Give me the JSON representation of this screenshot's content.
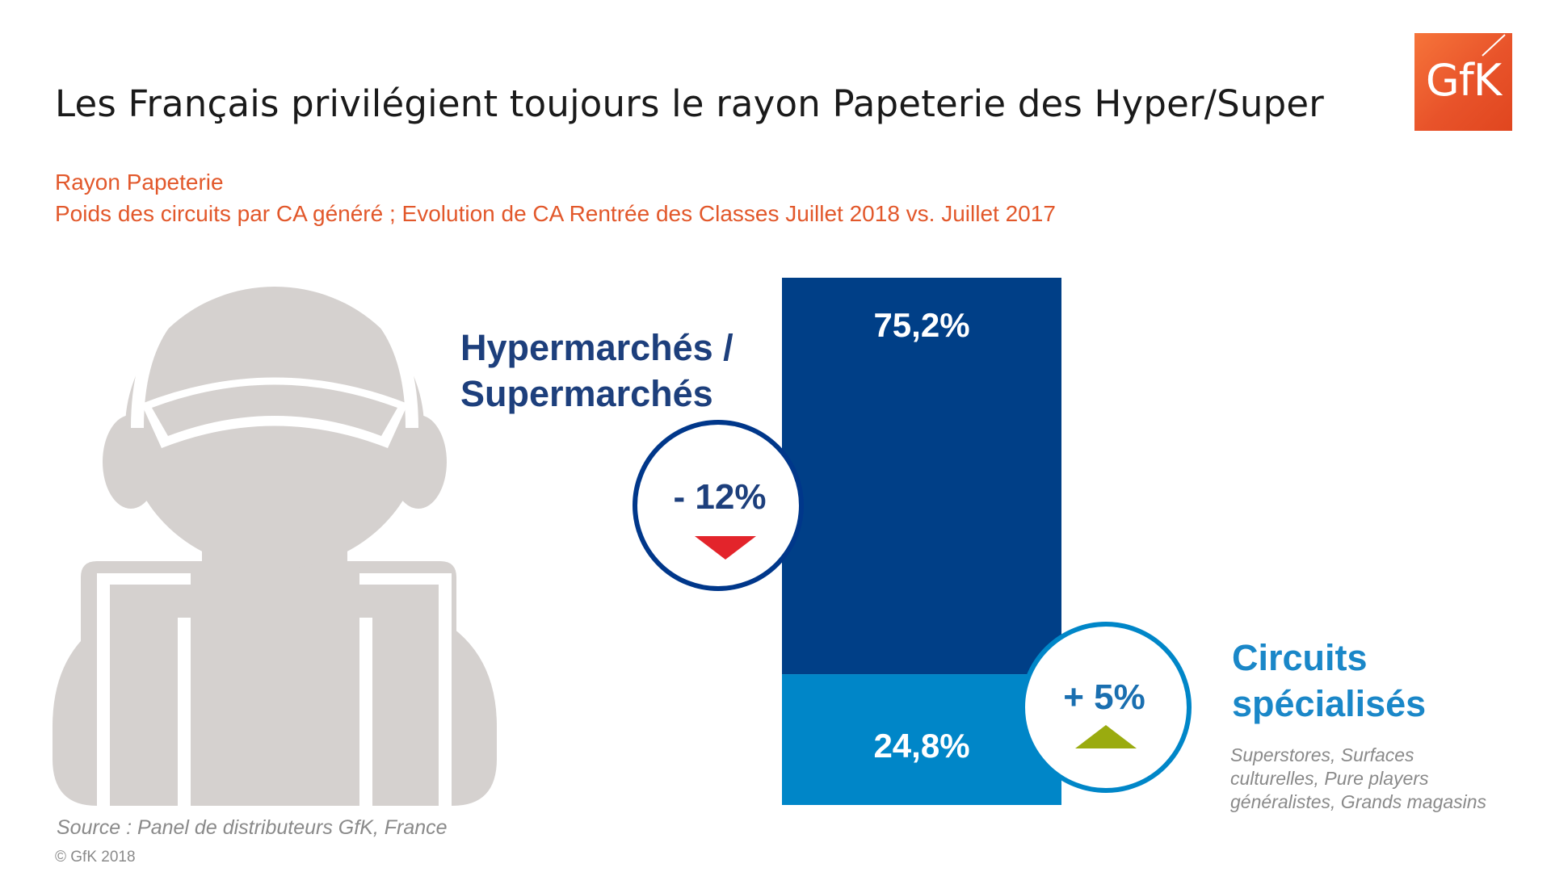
{
  "header": {
    "title": "Les Français privilégient toujours le rayon Papeterie des Hyper/Super",
    "logo_text": "GfK",
    "subtitle_1": "Rayon Papeterie",
    "subtitle_2": "Poids des circuits par CA généré ; Evolution de CA Rentrée des Classes Juillet 2018 vs. Juillet 2017"
  },
  "labels": {
    "hyper_line1": "Hypermarchés /",
    "hyper_line2": "Supermarchés",
    "spec_line1": "Circuits",
    "spec_line2": "spécialisés",
    "spec_desc_line1": "Superstores, Surfaces",
    "spec_desc_line2": "culturelles, Pure players",
    "spec_desc_line3": "généralistes, Grands magasins"
  },
  "footer": {
    "source": "Source : Panel  de distributeurs GfK, France",
    "copyright": "© GfK 2018"
  },
  "chart_data": {
    "type": "bar",
    "stacked": true,
    "unit": "%",
    "categories": [
      "Hypermarchés / Supermarchés",
      "Circuits spécialisés"
    ],
    "values": [
      75.2,
      24.8
    ],
    "value_labels": [
      "75,2%",
      "24,8%"
    ],
    "colors": [
      "#003f87",
      "#0086c8"
    ],
    "evolution": [
      {
        "label": "- 12%",
        "value": -12,
        "direction": "down",
        "color": "#e3242b",
        "ring_color": "#00378a",
        "text_color": "#1d3f7c"
      },
      {
        "label": "+ 5%",
        "value": 5,
        "direction": "up",
        "color": "#9aab0f",
        "ring_color": "#0086c8",
        "text_color": "#1a6fb0"
      }
    ]
  },
  "colors": {
    "accent_orange": "#e2582b",
    "person_gray": "#d5d1cf"
  }
}
